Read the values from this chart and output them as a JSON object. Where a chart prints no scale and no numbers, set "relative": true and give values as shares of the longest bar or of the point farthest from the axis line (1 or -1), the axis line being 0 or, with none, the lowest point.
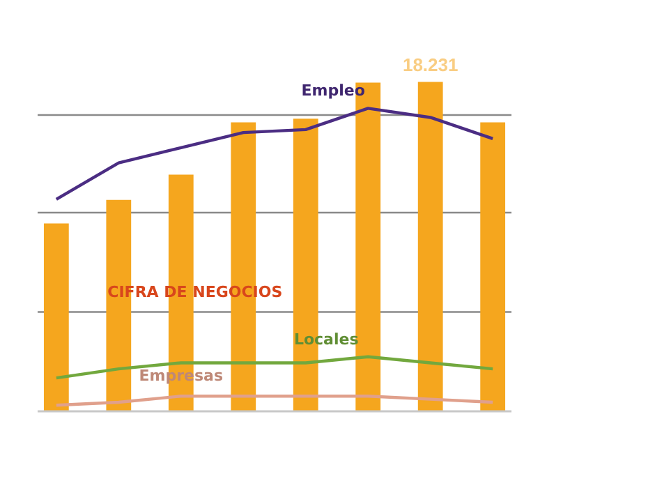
{
  "chart_data": [
    {
      "type": "bar",
      "categories": [
        null,
        null,
        null,
        null,
        null,
        null,
        null,
        null
      ],
      "series": [
        {
          "name": "CIFRA DE NEGOCIOS",
          "color": "#f5a61e",
          "values": [
            10400,
            11700,
            13100,
            16000,
            16200,
            18200,
            18231,
            16000
          ],
          "value_labels": [
            null,
            null,
            null,
            null,
            null,
            null,
            "18.231",
            null
          ]
        }
      ],
      "yticks": [
        {
          "value": 5500,
          "label": null
        },
        {
          "value": 11000,
          "label": null
        },
        {
          "value": 16400,
          "label": null
        }
      ],
      "grid": "y"
    },
    {
      "type": "line",
      "relative": true,
      "categories": [
        null,
        null,
        null,
        null,
        null,
        null,
        null,
        null
      ],
      "series": [
        {
          "name": "Empleo",
          "color": "#4b2d83",
          "values": [
            0.7,
            0.82,
            0.87,
            0.92,
            0.93,
            1,
            0.97,
            0.9
          ]
        },
        {
          "name": "Locales",
          "color": "#72a83e",
          "values": [
            0.11,
            0.14,
            0.16,
            0.16,
            0.16,
            0.18,
            0.16,
            0.14
          ]
        },
        {
          "name": "Empresas",
          "color": "#e0a08c",
          "values": [
            0.02,
            0.03,
            0.05,
            0.05,
            0.05,
            0.05,
            0.04,
            0.03
          ]
        }
      ],
      "marker": "none",
      "line_style": "solid"
    }
  ]
}
